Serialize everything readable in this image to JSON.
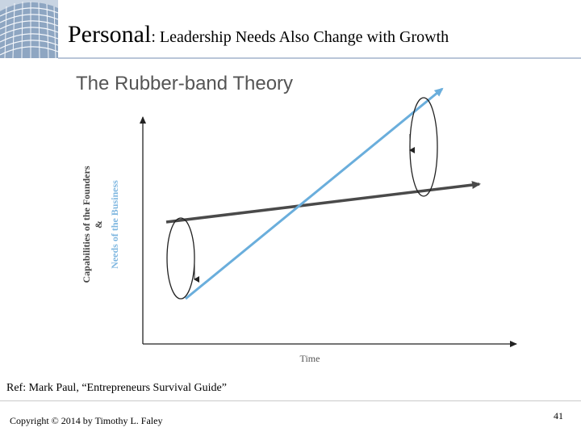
{
  "header": {
    "title_main": "Personal",
    "title_sep": ": ",
    "title_sub": "Leadership Needs Also Change with Growth"
  },
  "diagram": {
    "title": "The Rubber-band Theory",
    "y_label_founders": "Capabilities of the Founders",
    "y_label_amp": "&",
    "y_label_business": "Needs of the Business",
    "x_label": "Time",
    "colors": {
      "founders_line": "#4a4a4a",
      "business_line": "#6aaedc",
      "axes": "#222222",
      "y_label_business": "#7fb7e0"
    }
  },
  "footer": {
    "reference": "Ref:  Mark Paul, “Entrepreneurs Survival Guide”",
    "copyright": "Copyright © 2014 by Timothy L. Faley",
    "page_number": "41"
  }
}
